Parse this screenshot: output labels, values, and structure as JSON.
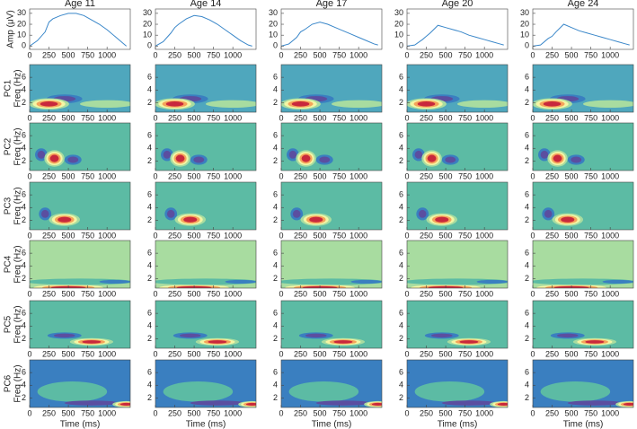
{
  "chart_data": [
    {
      "type": "line",
      "ylabel": "Amp (μV)",
      "color": "#3a87c9",
      "xlim": [
        0,
        1300
      ],
      "ylim": [
        -3,
        34
      ],
      "xticks": [
        0,
        250,
        500,
        750,
        1000
      ],
      "yticks": [
        0,
        10,
        20,
        30
      ],
      "x": [
        0,
        100,
        200,
        250,
        300,
        400,
        500,
        600,
        700,
        800,
        900,
        1000,
        1100,
        1200,
        1250
      ],
      "series": [
        {
          "name": "Age 11",
          "values": [
            0,
            5,
            13,
            22,
            25,
            28,
            30,
            30,
            28,
            24,
            20,
            15,
            9,
            3,
            0
          ]
        },
        {
          "name": "Age 14",
          "values": [
            0,
            4,
            12,
            17,
            20,
            25,
            28,
            27,
            24,
            20,
            15,
            10,
            5,
            1,
            0
          ]
        },
        {
          "name": "Age 17",
          "values": [
            0,
            2,
            8,
            13,
            15,
            20,
            22,
            20,
            17,
            14,
            11,
            8,
            5,
            2,
            1
          ]
        },
        {
          "name": "Age 20",
          "values": [
            0,
            1,
            6,
            9,
            12,
            19,
            17,
            15,
            13,
            10,
            8,
            6,
            4,
            2,
            1
          ]
        },
        {
          "name": "Age 24",
          "values": [
            0,
            1,
            7,
            9,
            13,
            20,
            17,
            14,
            12,
            10,
            8,
            6,
            4,
            2,
            1
          ]
        }
      ]
    },
    {
      "type": "heatmap",
      "title": "PC1",
      "ylabel": "Freq (Hz)",
      "xlim": [
        0,
        1300
      ],
      "ylim": [
        0.5,
        8
      ],
      "xticks": [
        0,
        250,
        500,
        750,
        1000
      ],
      "yticks": [
        2,
        4,
        6
      ],
      "background": "#4fa7bd",
      "blobs": [
        {
          "t": 1000,
          "f": 1.8,
          "rt": 350,
          "rf": 0.6,
          "colors": [
            "#a8dca0"
          ]
        },
        {
          "t": 450,
          "f": 2.6,
          "rt": 230,
          "rf": 0.7,
          "colors": [
            "#3a7fc0",
            "#5b4ea0"
          ]
        },
        {
          "t": 250,
          "f": 1.8,
          "rt": 260,
          "rf": 0.9,
          "colors": [
            "#a8dca0",
            "#f4f5a4",
            "#f5a35a",
            "#c8283c"
          ]
        }
      ]
    },
    {
      "type": "heatmap",
      "title": "PC2",
      "ylabel": "Freq (Hz)",
      "xlim": [
        0,
        1300
      ],
      "ylim": [
        0.5,
        8
      ],
      "xticks": [
        0,
        250,
        500,
        750,
        1000
      ],
      "yticks": [
        2,
        4,
        6
      ],
      "background": "#5cbba4",
      "blobs": [
        {
          "t": 150,
          "f": 3,
          "rt": 80,
          "rf": 1,
          "colors": [
            "#3a7fc0",
            "#5b4ea0"
          ]
        },
        {
          "t": 560,
          "f": 2.2,
          "rt": 110,
          "rf": 0.8,
          "colors": [
            "#3a7fc0",
            "#5b4ea0"
          ]
        },
        {
          "t": 320,
          "f": 2.4,
          "rt": 130,
          "rf": 1.3,
          "colors": [
            "#a8dca0",
            "#f4f5a4",
            "#f5a35a",
            "#c8283c"
          ]
        }
      ]
    },
    {
      "type": "heatmap",
      "title": "PC3",
      "ylabel": "Freq (Hz)",
      "xlim": [
        0,
        1300
      ],
      "ylim": [
        0.5,
        8
      ],
      "xticks": [
        0,
        250,
        500,
        750,
        1000
      ],
      "yticks": [
        2,
        4,
        6
      ],
      "background": "#5cbba4",
      "blobs": [
        {
          "t": 200,
          "f": 3,
          "rt": 80,
          "rf": 1,
          "colors": [
            "#3a7fc0",
            "#5b4ea0"
          ]
        },
        {
          "t": 450,
          "f": 2.1,
          "rt": 200,
          "rf": 1,
          "colors": [
            "#a8dca0",
            "#f4f5a4",
            "#f5a35a",
            "#c8283c"
          ]
        }
      ]
    },
    {
      "type": "heatmap",
      "title": "PC4",
      "ylabel": "Freq (Hz)",
      "xlim": [
        0,
        1300
      ],
      "ylim": [
        0.5,
        8
      ],
      "xticks": [
        0,
        250,
        500,
        750,
        1000
      ],
      "yticks": [
        2,
        4,
        6
      ],
      "background": "#a8dca0",
      "blobs": [
        {
          "t": 650,
          "f": 1.5,
          "rt": 700,
          "rf": 0.5,
          "colors": [
            "#5cbba4"
          ]
        },
        {
          "t": 1100,
          "f": 1.5,
          "rt": 200,
          "rf": 0.3,
          "colors": [
            "#3a7fc0"
          ]
        },
        {
          "t": 500,
          "f": 0.6,
          "rt": 450,
          "rf": 0.4,
          "colors": [
            "#f4f5a4",
            "#f5a35a",
            "#c8283c"
          ]
        }
      ]
    },
    {
      "type": "heatmap",
      "title": "PC5",
      "ylabel": "Freq (Hz)",
      "xlim": [
        0,
        1300
      ],
      "ylim": [
        0.5,
        8
      ],
      "xticks": [
        0,
        250,
        500,
        750,
        1000
      ],
      "yticks": [
        2,
        4,
        6
      ],
      "background": "#5cbba4",
      "blobs": [
        {
          "t": 450,
          "f": 2.5,
          "rt": 220,
          "rf": 0.5,
          "colors": [
            "#3a7fc0",
            "#5b4ea0"
          ]
        },
        {
          "t": 800,
          "f": 1.5,
          "rt": 280,
          "rf": 0.6,
          "colors": [
            "#a8dca0",
            "#f4f5a4",
            "#f5a35a",
            "#c8283c"
          ]
        }
      ]
    },
    {
      "type": "heatmap",
      "title": "PC6",
      "ylabel": "Freq (Hz)",
      "xlabel": "Time (ms)",
      "xlim": [
        0,
        1300
      ],
      "ylim": [
        0.5,
        8
      ],
      "xticks": [
        0,
        250,
        500,
        750,
        1000
      ],
      "yticks": [
        2,
        4,
        6
      ],
      "background": "#3a7fc0",
      "blobs": [
        {
          "t": 550,
          "f": 3,
          "rt": 450,
          "rf": 1.6,
          "colors": [
            "#5cbba4"
          ]
        },
        {
          "t": 800,
          "f": 1.2,
          "rt": 350,
          "rf": 0.4,
          "colors": [
            "#5b4ea0"
          ]
        },
        {
          "t": 1250,
          "f": 1,
          "rt": 180,
          "rf": 0.5,
          "colors": [
            "#a8dca0",
            "#f4f5a4",
            "#f5a35a",
            "#c8283c"
          ]
        }
      ]
    }
  ]
}
